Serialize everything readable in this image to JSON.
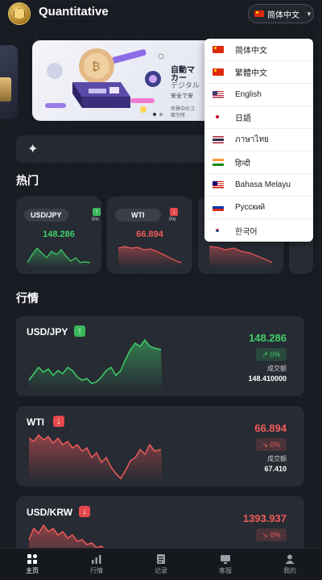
{
  "header": {
    "title": "Quantitative",
    "language_button": {
      "label": "简体中文",
      "flag": "cn"
    }
  },
  "banner": {
    "line1": "自動マ",
    "line2": "カー",
    "line3": "デジタル",
    "line4": "安全で安",
    "line5": "世界中のユ",
    "line6": "取引所"
  },
  "sections": {
    "hot": "热门",
    "market": "行情"
  },
  "hot_cards": [
    {
      "symbol": "USD/JPY",
      "percent": "0%",
      "price": "148.286",
      "trend": "up"
    },
    {
      "symbol": "WTI",
      "percent": "0%",
      "price": "66.894",
      "trend": "down"
    }
  ],
  "market_cards": [
    {
      "symbol": "USD/JPY",
      "price": "148.286",
      "change": "↗ 0%",
      "volume_label": "成交额",
      "volume": "148.410000",
      "trend": "up"
    },
    {
      "symbol": "WTI",
      "price": "66.894",
      "change": "↘ 0%",
      "volume_label": "成交额",
      "volume": "67.410",
      "trend": "down"
    },
    {
      "symbol": "USD/KRW",
      "price": "1393.937",
      "change": "↘ 0%",
      "trend": "down"
    }
  ],
  "language_menu": [
    {
      "label": "简体中文",
      "flag": "cn"
    },
    {
      "label": "繁體中文",
      "flag": "tw"
    },
    {
      "label": "English",
      "flag": "us"
    },
    {
      "label": "日語",
      "flag": "jp"
    },
    {
      "label": "ภาษาไทย",
      "flag": "th"
    },
    {
      "label": "हिन्दी",
      "flag": "in"
    },
    {
      "label": "Bahasa Melayu",
      "flag": "my"
    },
    {
      "label": "Русский",
      "flag": "ru"
    },
    {
      "label": "한국어",
      "flag": "kr"
    }
  ],
  "tabbar": [
    {
      "label": "主页",
      "icon": "home-icon",
      "active": true
    },
    {
      "label": "行情",
      "icon": "chart-icon",
      "active": false
    },
    {
      "label": "记录",
      "icon": "record-icon",
      "active": false
    },
    {
      "label": "客服",
      "icon": "support-icon",
      "active": false
    },
    {
      "label": "我的",
      "icon": "user-icon",
      "active": false
    }
  ],
  "colors": {
    "up": "#3ecf6a",
    "down": "#f05a5a",
    "background": "#181b21",
    "card": "#272b33"
  }
}
